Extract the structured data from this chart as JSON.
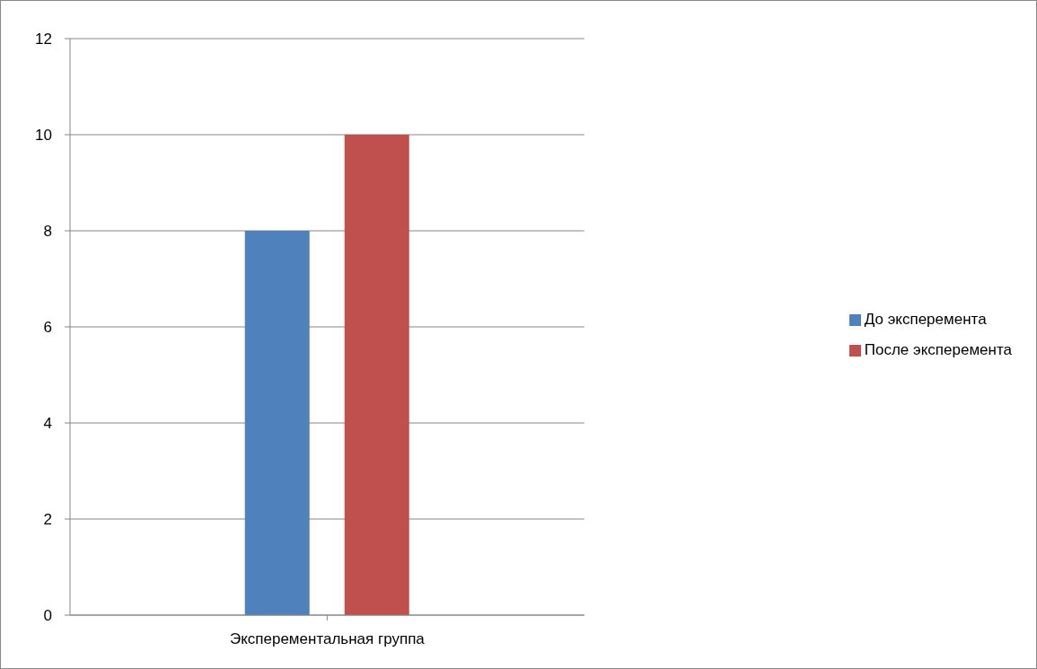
{
  "chart_data": {
    "type": "bar",
    "categories": [
      "Эксперементальная группа"
    ],
    "series": [
      {
        "name": "До эксперемента",
        "color": "#4f81bd",
        "values": [
          8
        ]
      },
      {
        "name": "После эксперемента",
        "color": "#c0504d",
        "values": [
          10
        ]
      }
    ],
    "ylim": [
      0,
      12
    ],
    "yticks": [
      0,
      2,
      4,
      6,
      8,
      10,
      12
    ],
    "grid": "y",
    "legend": "right"
  }
}
